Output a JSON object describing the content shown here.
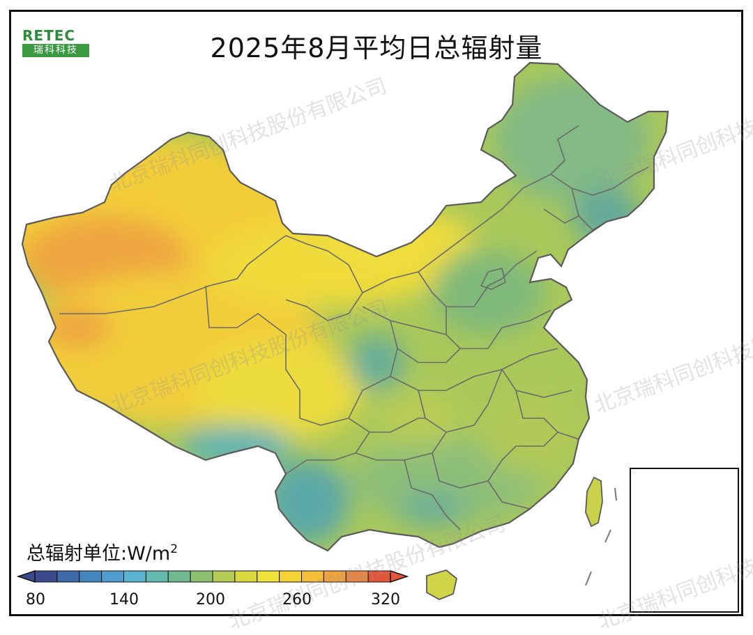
{
  "title": "2025年8月平均日总辐射量",
  "logo": {
    "top_text": "RETEC",
    "bottom_text": "瑞科科技"
  },
  "watermark_text": "北京瑞科同创科技股份有限公司",
  "legend": {
    "unit_label": "总辐射单位:W/m",
    "unit_superscript": "2",
    "tick_labels": [
      "80",
      "140",
      "200",
      "260",
      "320"
    ],
    "range": [
      80,
      320
    ],
    "step": 15,
    "colors": [
      "#3b4a8c",
      "#3f6aa8",
      "#4585bd",
      "#4f9dcc",
      "#5ab3cf",
      "#63b9ae",
      "#6fb98f",
      "#8dc06f",
      "#b4cb55",
      "#d8d93f",
      "#f0e23a",
      "#f4d435",
      "#f3be38",
      "#efa23e",
      "#e98644",
      "#e2553a"
    ]
  },
  "colors": {
    "border": "#111111",
    "province_line": "#666666",
    "logo_green": "#3a9a3f"
  }
}
